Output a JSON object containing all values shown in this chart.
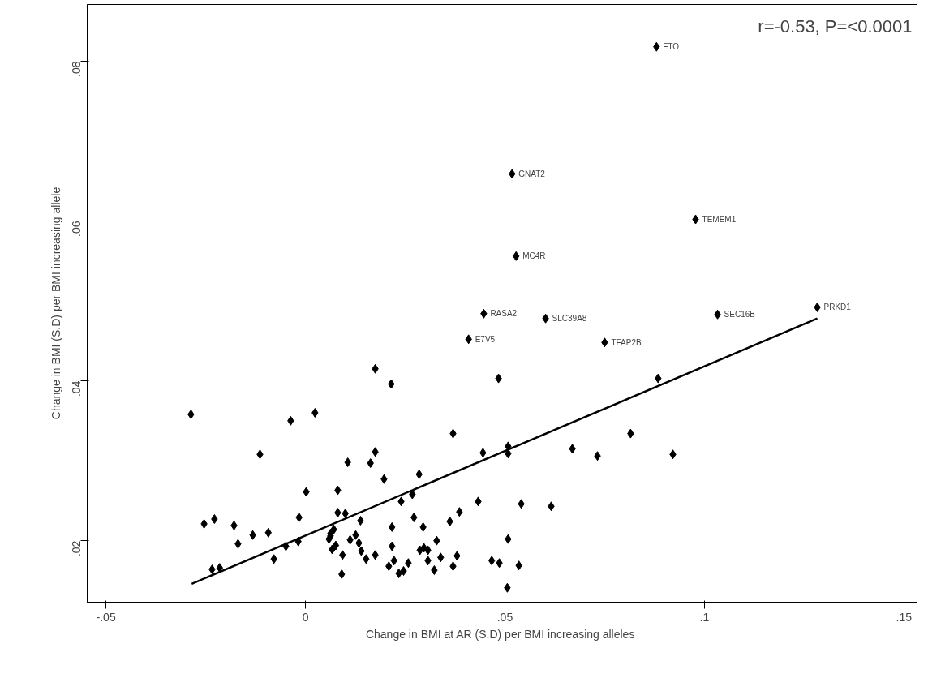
{
  "chart_data": {
    "type": "scatter",
    "xlabel": "Change in BMI at AR (S.D)  per BMI increasing alleles",
    "ylabel": "Change in BMI (S.D) per BMI increasing allele",
    "xlim": [
      -0.0547,
      0.1533
    ],
    "ylim": [
      0.0123,
      0.0871
    ],
    "xticks": [
      {
        "value": -0.05,
        "label": "-.05"
      },
      0,
      {
        "value": 0.05,
        "label": ".05"
      },
      {
        "value": 0.1,
        "label": ".1"
      },
      {
        "value": 0.15,
        "label": ".15"
      }
    ],
    "yticks": [
      {
        "value": 0.02,
        "label": ".02"
      },
      {
        "value": 0.04,
        "label": ".04"
      },
      {
        "value": 0.06,
        "label": ".06"
      },
      {
        "value": 0.08,
        "label": ".08"
      }
    ],
    "grid": false,
    "series": [
      {
        "color": "#000000",
        "marker": "diamond",
        "x": [
          0.088,
          0.0518,
          0.0978,
          0.0528,
          0.0447,
          0.0602,
          0.0409,
          0.075,
          0.1033,
          0.1283,
          0.0175,
          0.0215,
          -0.0287,
          -0.0037,
          0.0024,
          -0.0114,
          0.0175,
          0.0106,
          0.0163,
          0.0197,
          0.0002,
          0.0081,
          0.024,
          -0.0254,
          -0.0228,
          -0.0179,
          -0.0016,
          0.0081,
          0.01,
          0.0138,
          0.0217,
          -0.0132,
          -0.0093,
          -0.0169,
          -0.0049,
          -0.0018,
          0.0063,
          0.0063,
          0.0071,
          0.0059,
          0.0076,
          0.0067,
          0.0093,
          0.0112,
          0.0126,
          0.0134,
          0.014,
          0.0152,
          0.0175,
          0.0217,
          0.0222,
          0.0209,
          0.0234,
          -0.0079,
          -0.0234,
          -0.0215,
          0.0091,
          0.0484,
          0.0884,
          0.037,
          0.0445,
          0.0508,
          0.0508,
          0.0669,
          0.0732,
          0.0815,
          0.0921,
          0.0285,
          0.0268,
          0.0433,
          0.0541,
          0.0616,
          0.0272,
          0.0386,
          0.0362,
          0.0295,
          0.0329,
          0.0508,
          0.0287,
          0.0297,
          0.0307,
          0.0339,
          0.038,
          0.0307,
          0.0258,
          0.0246,
          0.0323,
          0.037,
          0.0467,
          0.0486,
          0.0535,
          0.0506
        ],
        "values": [
          0.0818,
          0.0659,
          0.0602,
          0.0556,
          0.0484,
          0.0478,
          0.0452,
          0.0448,
          0.0483,
          0.0492,
          0.0415,
          0.0396,
          0.0358,
          0.035,
          0.036,
          0.0308,
          0.0311,
          0.0298,
          0.0297,
          0.0277,
          0.0261,
          0.0263,
          0.0249,
          0.0221,
          0.0227,
          0.0219,
          0.0229,
          0.0235,
          0.0234,
          0.0225,
          0.0217,
          0.0207,
          0.021,
          0.0196,
          0.0193,
          0.0199,
          0.0209,
          0.0206,
          0.0214,
          0.0202,
          0.0194,
          0.0189,
          0.0182,
          0.0201,
          0.0207,
          0.0197,
          0.0187,
          0.0177,
          0.0182,
          0.0193,
          0.0175,
          0.0168,
          0.0159,
          0.0177,
          0.0164,
          0.0166,
          0.0158,
          0.0403,
          0.0403,
          0.0334,
          0.031,
          0.0318,
          0.0309,
          0.0315,
          0.0306,
          0.0334,
          0.0308,
          0.0283,
          0.0258,
          0.0249,
          0.0246,
          0.0243,
          0.0229,
          0.0236,
          0.0224,
          0.0217,
          0.02,
          0.0202,
          0.0188,
          0.0191,
          0.0188,
          0.0179,
          0.0181,
          0.0175,
          0.0172,
          0.0162,
          0.0163,
          0.0168,
          0.0175,
          0.0172,
          0.0169,
          0.0141
        ]
      },
      {
        "type": "line",
        "color": "#000000",
        "line_style": "solid",
        "x": [
          -0.0285,
          0.1283
        ],
        "values": [
          0.0146,
          0.0478
        ]
      }
    ],
    "annotations": [
      {
        "text": "FTO",
        "x": 0.088,
        "y": 0.0818
      },
      {
        "text": "GNAT2",
        "x": 0.0518,
        "y": 0.0659
      },
      {
        "text": "TEMEM1",
        "x": 0.0978,
        "y": 0.0602
      },
      {
        "text": "MC4R",
        "x": 0.0528,
        "y": 0.0556
      },
      {
        "text": "RASA2",
        "x": 0.0447,
        "y": 0.0484
      },
      {
        "text": "SLC39A8",
        "x": 0.0602,
        "y": 0.0478
      },
      {
        "text": "E7V5",
        "x": 0.0409,
        "y": 0.0452
      },
      {
        "text": "TFAP2B",
        "x": 0.075,
        "y": 0.0448
      },
      {
        "text": "SEC16B",
        "x": 0.1033,
        "y": 0.0483
      },
      {
        "text": "PRKD1",
        "x": 0.1283,
        "y": 0.0492
      },
      "r=-0.53, P=<0.0001"
    ]
  }
}
